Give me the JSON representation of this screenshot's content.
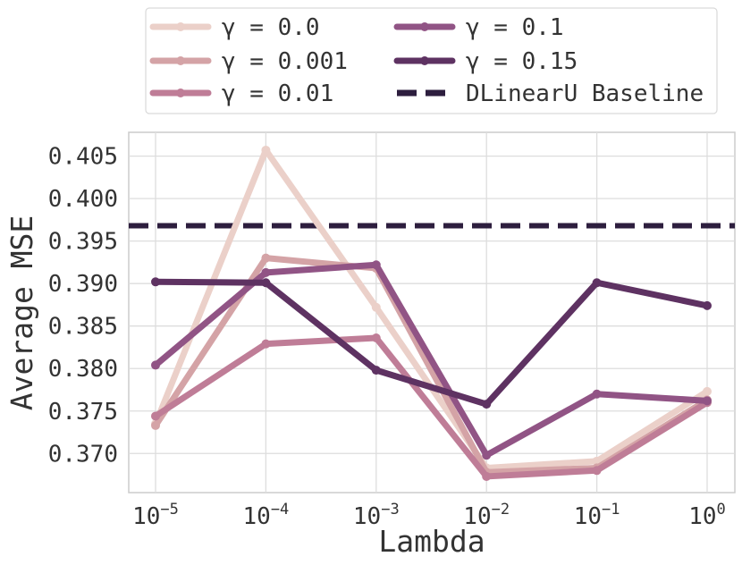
{
  "chart_data": {
    "type": "line",
    "xlabel": "Lambda",
    "ylabel": "Average MSE",
    "x_scale": "log",
    "x": [
      1e-05,
      0.0001,
      0.001,
      0.01,
      0.1,
      1
    ],
    "x_tick_labels": [
      {
        "base": "10",
        "exp": "−5"
      },
      {
        "base": "10",
        "exp": "−4"
      },
      {
        "base": "10",
        "exp": "−3"
      },
      {
        "base": "10",
        "exp": "−2"
      },
      {
        "base": "10",
        "exp": "−1"
      },
      {
        "base": "10",
        "exp": "0"
      }
    ],
    "ylim": [
      0.3654,
      0.4078
    ],
    "y_ticks": [
      0.37,
      0.375,
      0.38,
      0.385,
      0.39,
      0.395,
      0.4,
      0.405
    ],
    "y_tick_labels": [
      "0.370",
      "0.375",
      "0.380",
      "0.385",
      "0.390",
      "0.395",
      "0.400",
      "0.405"
    ],
    "grid": true,
    "legend_position": "top-center",
    "series": [
      {
        "name": "γ = 0.0",
        "color": "#ebd0c9",
        "values": [
          0.3735,
          0.4057,
          0.3872,
          0.3683,
          0.3691,
          0.3773
        ]
      },
      {
        "name": "γ = 0.001",
        "color": "#d4a3a6",
        "values": [
          0.3733,
          0.393,
          0.3918,
          0.3678,
          0.3683,
          0.3763
        ]
      },
      {
        "name": "γ = 0.01",
        "color": "#bf7d97",
        "values": [
          0.3744,
          0.3829,
          0.3836,
          0.3673,
          0.368,
          0.376
        ]
      },
      {
        "name": "γ = 0.1",
        "color": "#915485",
        "values": [
          0.3804,
          0.3913,
          0.3922,
          0.3698,
          0.377,
          0.3762
        ]
      },
      {
        "name": "γ = 0.15",
        "color": "#5e3262",
        "values": [
          0.3902,
          0.3901,
          0.3798,
          0.3758,
          0.3901,
          0.3874
        ]
      }
    ],
    "baseline": {
      "name": "DLinearU Baseline",
      "value": 0.3968,
      "color": "#2d1e3e",
      "style": "dashed"
    }
  }
}
